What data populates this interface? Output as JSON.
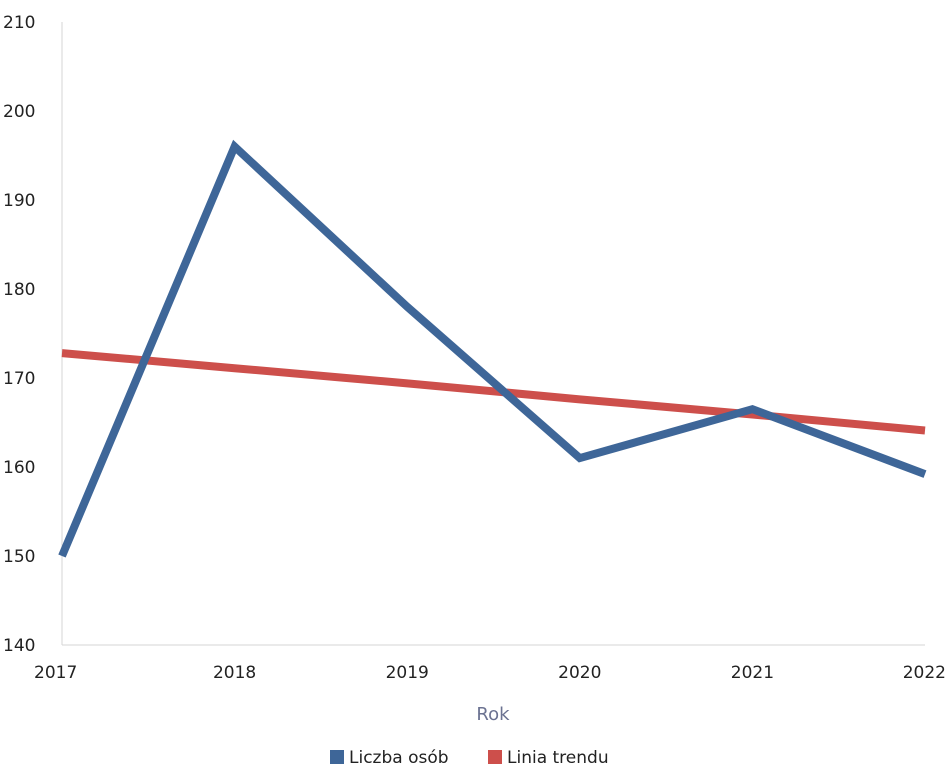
{
  "chart_data": {
    "type": "line",
    "title": "",
    "xlabel": "Rok",
    "ylabel": "",
    "categories": [
      "2017",
      "2018",
      "2019",
      "2020",
      "2021",
      "2022"
    ],
    "yticks": [
      "140",
      "150",
      "160",
      "170",
      "180",
      "190",
      "200",
      "210"
    ],
    "ylim": [
      140,
      210
    ],
    "grid": false,
    "legend_position": "bottom",
    "series": [
      {
        "name": "Liczba osób",
        "color": "#3e6698",
        "values": [
          150,
          196,
          178,
          161,
          166.5,
          159.2
        ]
      },
      {
        "name": "Linia trendu",
        "color": "#cd4f4b",
        "values": [
          172.8,
          171.1,
          169.4,
          167.6,
          165.9,
          164.1
        ]
      }
    ]
  }
}
